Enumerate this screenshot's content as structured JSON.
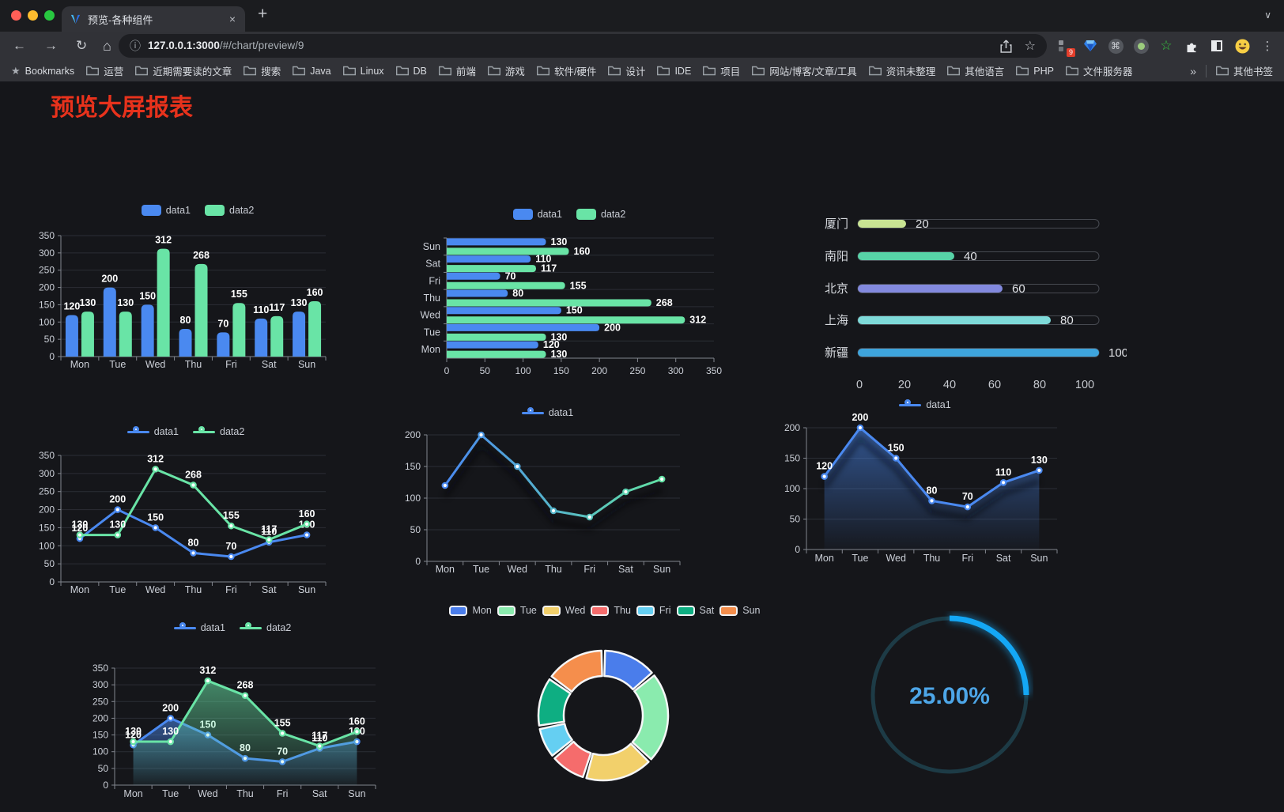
{
  "browser": {
    "tab": {
      "title": "预览-各种组件"
    },
    "icons": {
      "back": "←",
      "forward": "→",
      "reload": "↻",
      "home": "⌂",
      "info": "ⓘ",
      "bookmark_star": "☆",
      "command": "⌘",
      "green_star": "☆",
      "menu": "⋮",
      "new_tab": "+",
      "close_tab": "×",
      "tabs_chevron": "∨",
      "overflow": "»",
      "bookmarks_star": "★"
    },
    "url": {
      "host": "127.0.0.1:3000",
      "path": "/#/chart/preview/9"
    },
    "extension_badge": "9",
    "bookmarks": [
      "Bookmarks",
      "运营",
      "近期需要读的文章",
      "搜索",
      "Java",
      "Linux",
      "DB",
      "前端",
      "游戏",
      "软件/硬件",
      "设计",
      "IDE",
      "项目",
      "网站/博客/文章/工具",
      "资讯未整理",
      "其他语言",
      "PHP",
      "文件服务器"
    ],
    "other_bookmarks": "其他书签"
  },
  "page": {
    "title": "预览大屏报表",
    "title_color": "#e8321c"
  },
  "chart_data": [
    {
      "id": "bar-vertical",
      "type": "bar",
      "categories": [
        "Mon",
        "Tue",
        "Wed",
        "Thu",
        "Fri",
        "Sat",
        "Sun"
      ],
      "series": [
        {
          "name": "data1",
          "color": "#4a89f0",
          "values": [
            120,
            200,
            150,
            80,
            70,
            110,
            130
          ]
        },
        {
          "name": "data2",
          "color": "#69e4a6",
          "values": [
            130,
            130,
            312,
            268,
            155,
            117,
            160
          ]
        }
      ],
      "ylim": [
        0,
        350
      ],
      "ytick_step": 50,
      "legend_position": "top",
      "grid": true,
      "value_labels": true
    },
    {
      "id": "bar-horizontal",
      "type": "hbar",
      "categories": [
        "Mon",
        "Tue",
        "Wed",
        "Thu",
        "Fri",
        "Sat",
        "Sun"
      ],
      "series": [
        {
          "name": "data1",
          "color": "#4a89f0",
          "values": [
            120,
            200,
            150,
            80,
            70,
            110,
            130
          ]
        },
        {
          "name": "data2",
          "color": "#69e4a6",
          "values": [
            130,
            130,
            312,
            268,
            155,
            117,
            160
          ]
        }
      ],
      "xlim": [
        0,
        350
      ],
      "xtick_step": 50,
      "legend_position": "top",
      "grid": true,
      "value_labels": true
    },
    {
      "id": "capsule-bars",
      "type": "capsule",
      "categories": [
        "厦门",
        "南阳",
        "北京",
        "上海",
        "新疆"
      ],
      "values": [
        20,
        40,
        60,
        80,
        100
      ],
      "colors": [
        "#c9e493",
        "#57d3a7",
        "#8289de",
        "#7edad9",
        "#3ea4dc"
      ],
      "xlim": [
        0,
        100
      ],
      "xticks": [
        0,
        20,
        40,
        60,
        80,
        100
      ],
      "value_labels": true
    },
    {
      "id": "line-two-series",
      "type": "line",
      "categories": [
        "Mon",
        "Tue",
        "Wed",
        "Thu",
        "Fri",
        "Sat",
        "Sun"
      ],
      "series": [
        {
          "name": "data1",
          "color": "#4a89f0",
          "values": [
            120,
            200,
            150,
            80,
            70,
            110,
            130
          ]
        },
        {
          "name": "data2",
          "color": "#69e4a6",
          "values": [
            130,
            130,
            312,
            268,
            155,
            117,
            160
          ]
        }
      ],
      "ylim": [
        0,
        350
      ],
      "ytick_step": 50,
      "legend_position": "top",
      "value_labels": true,
      "markers": true
    },
    {
      "id": "line-gradient",
      "type": "line",
      "categories": [
        "Mon",
        "Tue",
        "Wed",
        "Thu",
        "Fri",
        "Sat",
        "Sun"
      ],
      "series": [
        {
          "name": "data1",
          "color": "#4a89f0",
          "color_start": "#4a89f0",
          "color_end": "#62e1a4",
          "values": [
            120,
            200,
            150,
            80,
            70,
            110,
            130
          ]
        }
      ],
      "ylim": [
        0,
        200
      ],
      "ytick_step": 50,
      "legend_position": "top",
      "value_labels": false,
      "markers": true,
      "shadow": true
    },
    {
      "id": "area-single",
      "type": "line",
      "area": true,
      "categories": [
        "Mon",
        "Tue",
        "Wed",
        "Thu",
        "Fri",
        "Sat",
        "Sun"
      ],
      "series": [
        {
          "name": "data1",
          "color": "#4a89f0",
          "values": [
            120,
            200,
            150,
            80,
            70,
            110,
            130
          ]
        }
      ],
      "ylim": [
        0,
        200
      ],
      "ytick_step": 50,
      "legend_position": "top",
      "value_labels": true,
      "markers": true,
      "shadow": true
    },
    {
      "id": "area-two-series",
      "type": "line",
      "area": true,
      "categories": [
        "Mon",
        "Tue",
        "Wed",
        "Thu",
        "Fri",
        "Sat",
        "Sun"
      ],
      "series": [
        {
          "name": "data1",
          "color": "#4a89f0",
          "values": [
            120,
            200,
            150,
            80,
            70,
            110,
            130
          ]
        },
        {
          "name": "data2",
          "color": "#69e4a6",
          "values": [
            130,
            130,
            312,
            268,
            155,
            117,
            160
          ]
        }
      ],
      "ylim": [
        0,
        350
      ],
      "ytick_step": 50,
      "legend_position": "top",
      "value_labels": true,
      "markers": true
    },
    {
      "id": "donut",
      "type": "pie",
      "labels": [
        "Mon",
        "Tue",
        "Wed",
        "Thu",
        "Fri",
        "Sat",
        "Sun"
      ],
      "values": [
        120,
        200,
        150,
        80,
        70,
        110,
        130
      ],
      "colors": [
        "#4a7deb",
        "#8aebae",
        "#f2d06b",
        "#f56c6c",
        "#65cff2",
        "#0eae82",
        "#f58e4c"
      ],
      "inner_radius_ratio": 0.61,
      "legend_position": "top",
      "border_color": "#f5f6f7"
    },
    {
      "id": "gauge",
      "type": "gauge",
      "value": 25,
      "display": "25.00%",
      "color": "#14a7f5",
      "track_color": "#1d3b46",
      "text_color": "#4da6e8"
    }
  ]
}
